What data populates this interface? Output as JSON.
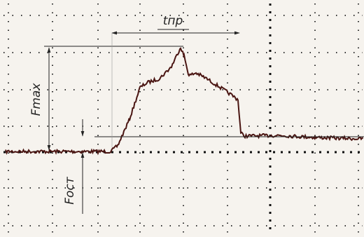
{
  "annotations": {
    "duration": "tпр",
    "max_force": "Fmax",
    "residual_force": "Fост"
  }
}
